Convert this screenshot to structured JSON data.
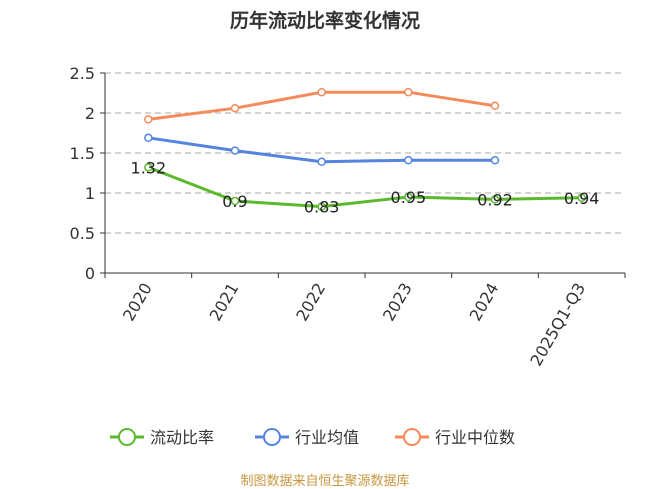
{
  "chart_data": {
    "type": "line",
    "title": "历年流动比率变化情况",
    "categories": [
      "2020",
      "2021",
      "2022",
      "2023",
      "2024",
      "2025Q1-Q3"
    ],
    "ylim": [
      0,
      2.5
    ],
    "yticks": [
      "0",
      "0.5",
      "1",
      "1.5",
      "2",
      "2.5"
    ],
    "grid": true,
    "legend_position": "bottom",
    "series": [
      {
        "name": "流动比率",
        "color": "#5cb82e",
        "values": [
          1.32,
          0.9,
          0.83,
          0.95,
          0.92,
          0.94
        ],
        "labels": [
          "1.32",
          "0.9",
          "0.83",
          "0.95",
          "0.92",
          "0.94"
        ]
      },
      {
        "name": "行业均值",
        "color": "#5585e0",
        "values": [
          1.69,
          1.53,
          1.39,
          1.41,
          1.41,
          null
        ]
      },
      {
        "name": "行业中位数",
        "color": "#f58a5a",
        "values": [
          1.92,
          2.06,
          2.26,
          2.26,
          2.09,
          null
        ]
      }
    ]
  },
  "source": "制图数据来自恒生聚源数据库"
}
